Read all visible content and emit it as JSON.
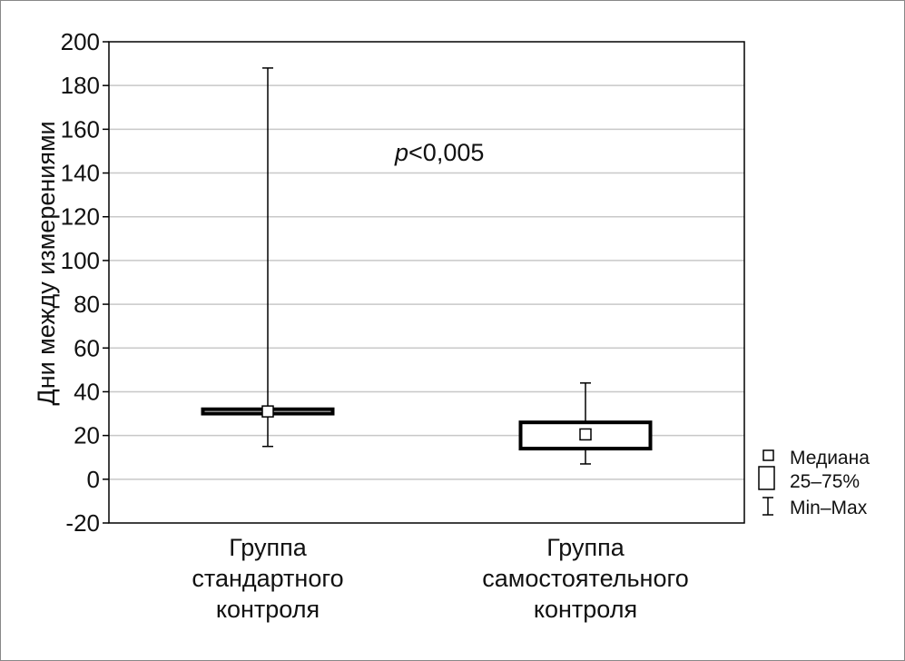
{
  "chart_data": {
    "type": "box",
    "title": "",
    "xlabel": "",
    "ylabel": "Дни между измерениями",
    "ylim": [
      -20,
      200
    ],
    "yticks": [
      200,
      180,
      160,
      140,
      120,
      100,
      80,
      60,
      40,
      20,
      0,
      -20
    ],
    "grid": true,
    "categories": [
      [
        "Группа",
        "стандартного",
        "контроля"
      ],
      [
        "Группа",
        "самостоятельного",
        "контроля"
      ]
    ],
    "series": [
      {
        "min": 15,
        "q1": 30,
        "median": 31,
        "q3": 32,
        "max": 188
      },
      {
        "min": 7,
        "q1": 14,
        "median": 20.5,
        "q3": 26,
        "max": 44
      }
    ],
    "annotation": {
      "italic": "p",
      "rest": "<0,005"
    },
    "legend": {
      "position": "right-bottom",
      "items": [
        "Медиана",
        "25–75%",
        "Min–Max"
      ]
    }
  }
}
